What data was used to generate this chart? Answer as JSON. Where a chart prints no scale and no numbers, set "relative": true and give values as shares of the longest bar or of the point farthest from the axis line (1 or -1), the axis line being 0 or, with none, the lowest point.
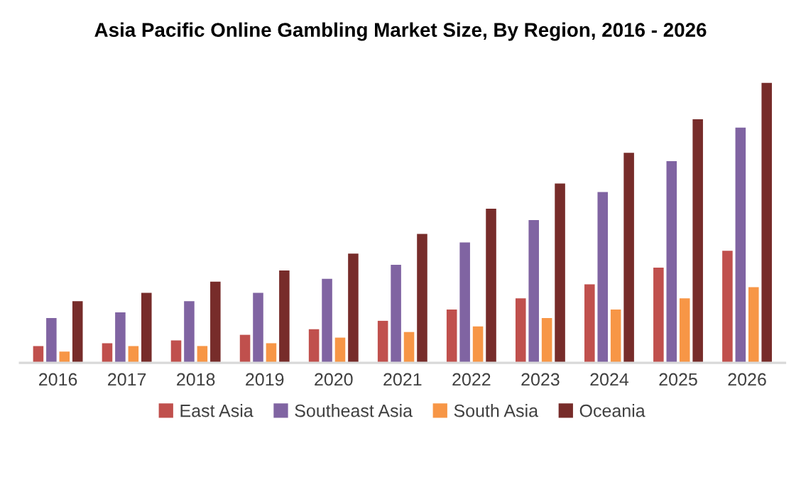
{
  "chart_data": {
    "type": "bar",
    "title": "Asia Pacific Online Gambling Market Size, By Region, 2016 - 2026",
    "categories": [
      "2016",
      "2017",
      "2018",
      "2019",
      "2020",
      "2021",
      "2022",
      "2023",
      "2024",
      "2025",
      "2026"
    ],
    "relative": true,
    "grid": false,
    "legend": "bottom",
    "series": [
      {
        "name": "East Asia",
        "color": "#c0504d",
        "values": [
          0.06,
          0.07,
          0.08,
          0.1,
          0.12,
          0.15,
          0.19,
          0.23,
          0.28,
          0.34,
          0.4
        ]
      },
      {
        "name": "Southeast Asia",
        "color": "#8064a2",
        "values": [
          0.16,
          0.18,
          0.22,
          0.25,
          0.3,
          0.35,
          0.43,
          0.51,
          0.61,
          0.72,
          0.84
        ]
      },
      {
        "name": "South Asia",
        "color": "#f79646",
        "values": [
          0.04,
          0.06,
          0.06,
          0.07,
          0.09,
          0.11,
          0.13,
          0.16,
          0.19,
          0.23,
          0.27
        ]
      },
      {
        "name": "Oceania",
        "color": "#772c2a",
        "values": [
          0.22,
          0.25,
          0.29,
          0.33,
          0.39,
          0.46,
          0.55,
          0.64,
          0.75,
          0.87,
          1
        ]
      }
    ]
  }
}
